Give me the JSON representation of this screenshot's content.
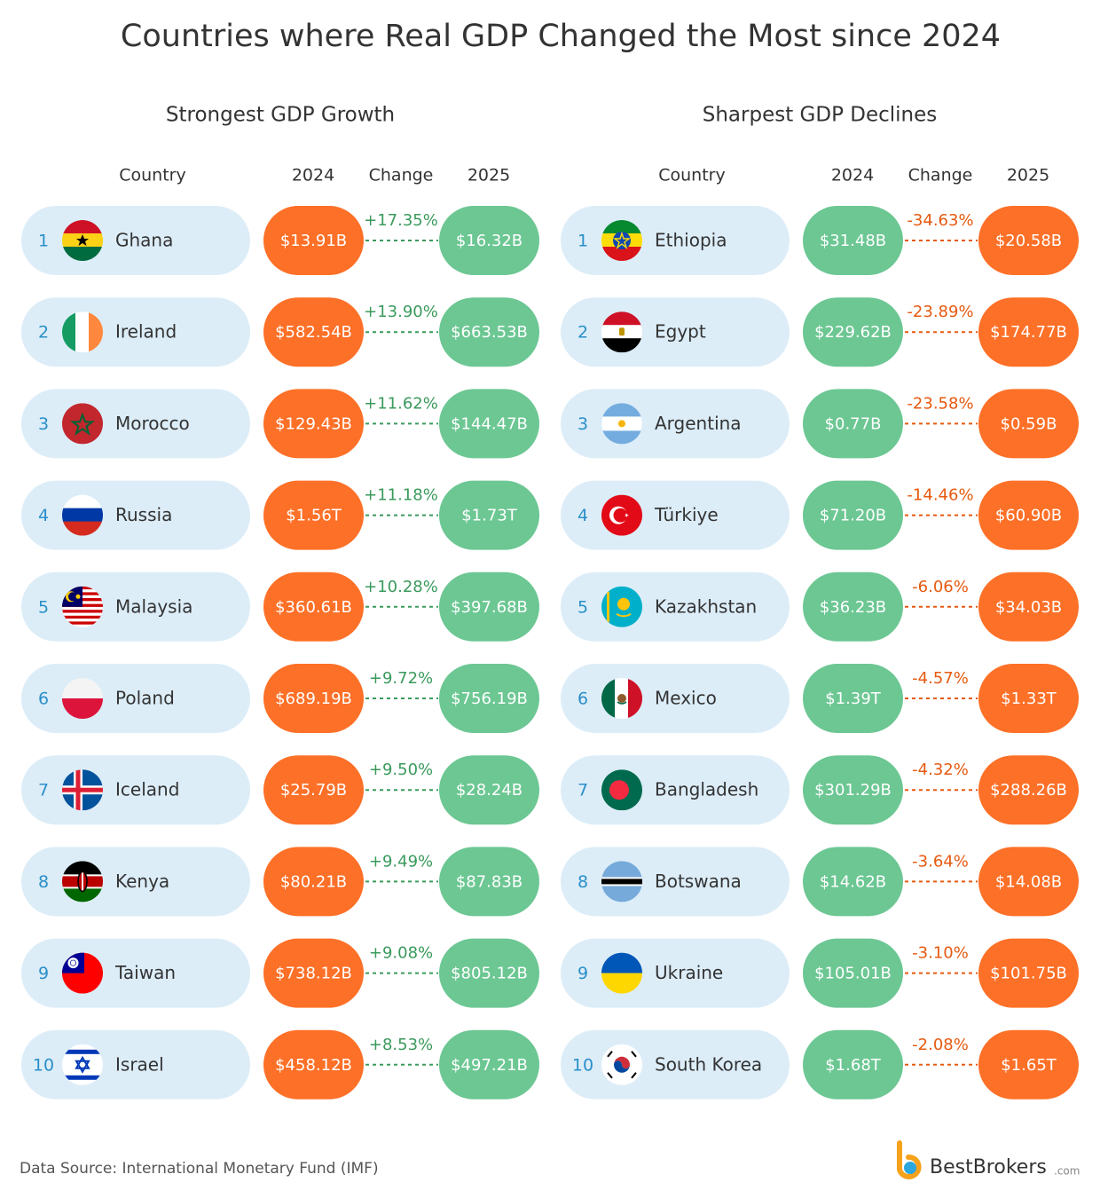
{
  "title": "Countries where Real GDP Changed the Most since 2024",
  "panels": [
    {
      "heading": "Strongest GDP Growth",
      "columns": [
        "Country",
        "2024",
        "Change",
        "2025"
      ],
      "rows": [
        {
          "rank": 1,
          "country": "Ghana",
          "gdp_2024": "$13.91B",
          "change": "+17.35%",
          "gdp_2025": "$16.32B"
        },
        {
          "rank": 2,
          "country": "Ireland",
          "gdp_2024": "$582.54B",
          "change": "+13.90%",
          "gdp_2025": "$663.53B"
        },
        {
          "rank": 3,
          "country": "Morocco",
          "gdp_2024": "$129.43B",
          "change": "+11.62%",
          "gdp_2025": "$144.47B"
        },
        {
          "rank": 4,
          "country": "Russia",
          "gdp_2024": "$1.56T",
          "change": "+11.18%",
          "gdp_2025": "$1.73T"
        },
        {
          "rank": 5,
          "country": "Malaysia",
          "gdp_2024": "$360.61B",
          "change": "+10.28%",
          "gdp_2025": "$397.68B"
        },
        {
          "rank": 6,
          "country": "Poland",
          "gdp_2024": "$689.19B",
          "change": "+9.72%",
          "gdp_2025": "$756.19B"
        },
        {
          "rank": 7,
          "country": "Iceland",
          "gdp_2024": "$25.79B",
          "change": "+9.50%",
          "gdp_2025": "$28.24B"
        },
        {
          "rank": 8,
          "country": "Kenya",
          "gdp_2024": "$80.21B",
          "change": "+9.49%",
          "gdp_2025": "$87.83B"
        },
        {
          "rank": 9,
          "country": "Taiwan",
          "gdp_2024": "$738.12B",
          "change": "+9.08%",
          "gdp_2025": "$805.12B"
        },
        {
          "rank": 10,
          "country": "Israel",
          "gdp_2024": "$458.12B",
          "change": "+8.53%",
          "gdp_2025": "$497.21B"
        }
      ]
    },
    {
      "heading": "Sharpest GDP Declines",
      "columns": [
        "Country",
        "2024",
        "Change",
        "2025"
      ],
      "rows": [
        {
          "rank": 1,
          "country": "Ethiopia",
          "gdp_2024": "$31.48B",
          "change": "-34.63%",
          "gdp_2025": "$20.58B"
        },
        {
          "rank": 2,
          "country": "Egypt",
          "gdp_2024": "$229.62B",
          "change": "-23.89%",
          "gdp_2025": "$174.77B"
        },
        {
          "rank": 3,
          "country": "Argentina",
          "gdp_2024": "$0.77B",
          "change": "-23.58%",
          "gdp_2025": "$0.59B"
        },
        {
          "rank": 4,
          "country": "Türkiye",
          "gdp_2024": "$71.20B",
          "change": "-14.46%",
          "gdp_2025": "$60.90B"
        },
        {
          "rank": 5,
          "country": "Kazakhstan",
          "gdp_2024": "$36.23B",
          "change": "-6.06%",
          "gdp_2025": "$34.03B"
        },
        {
          "rank": 6,
          "country": "Mexico",
          "gdp_2024": "$1.39T",
          "change": "-4.57%",
          "gdp_2025": "$1.33T"
        },
        {
          "rank": 7,
          "country": "Bangladesh",
          "gdp_2024": "$301.29B",
          "change": "-4.32%",
          "gdp_2025": "$288.26B"
        },
        {
          "rank": 8,
          "country": "Botswana",
          "gdp_2024": "$14.62B",
          "change": "-3.64%",
          "gdp_2025": "$14.08B"
        },
        {
          "rank": 9,
          "country": "Ukraine",
          "gdp_2024": "$105.01B",
          "change": "-3.10%",
          "gdp_2025": "$101.75B"
        },
        {
          "rank": 10,
          "country": "South Korea",
          "gdp_2024": "$1.68T",
          "change": "-2.08%",
          "gdp_2025": "$1.65T"
        }
      ]
    }
  ],
  "source": "Data Source: International Monetary Fund (IMF)",
  "logo": {
    "name": "BestBrokers",
    "suffix": ".com"
  }
}
